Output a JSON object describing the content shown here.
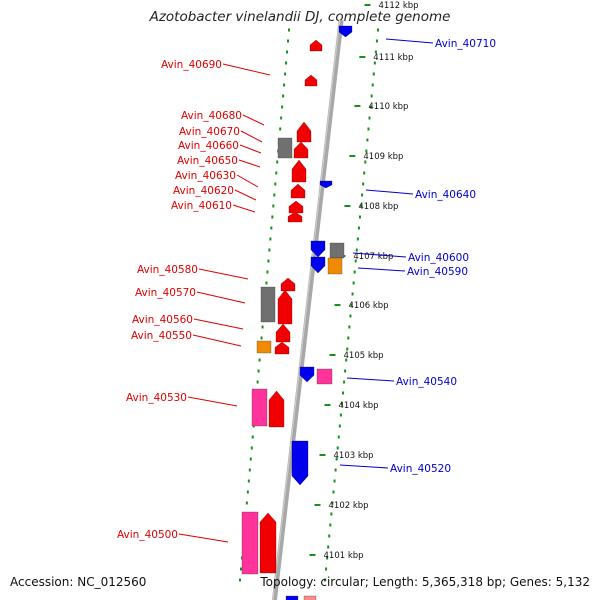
{
  "title": "Azotobacter vinelandii DJ, complete genome",
  "accession": "Accession: NC_012560",
  "summary": "Topology: circular; Length: 5,365,318 bp; Genes: 5,132",
  "colors": {
    "reverse_label": "#e00000",
    "forward_label": "#0000cc",
    "gene_red": "#f00000",
    "gene_blue": "#0000ee",
    "gene_gray": "#707070",
    "gene_orange": "#f08a00",
    "gene_pink": "#ff3399",
    "dots_green": "#1a8f1a",
    "backbone": "#a8a8a8"
  },
  "ruler_ticks": [
    {
      "label": "4112 kbp"
    },
    {
      "label": "4111 kbp"
    },
    {
      "label": "4110 kbp"
    },
    {
      "label": "4109 kbp"
    },
    {
      "label": "4108 kbp"
    },
    {
      "label": "4107 kbp"
    },
    {
      "label": "4106 kbp"
    },
    {
      "label": "4105 kbp"
    },
    {
      "label": "4104 kbp"
    },
    {
      "label": "4103 kbp"
    },
    {
      "label": "4102 kbp"
    },
    {
      "label": "4101 kbp"
    }
  ],
  "left_labels": [
    "Avin_40690",
    "Avin_40680",
    "Avin_40670",
    "Avin_40660",
    "Avin_40650",
    "Avin_40630",
    "Avin_40620",
    "Avin_40610",
    "Avin_40580",
    "Avin_40570",
    "Avin_40560",
    "Avin_40550",
    "Avin_40530",
    "Avin_40500"
  ],
  "right_labels": [
    "Avin_40710",
    "Avin_40640",
    "Avin_40600",
    "Avin_40590",
    "Avin_40540",
    "Avin_40520"
  ]
}
